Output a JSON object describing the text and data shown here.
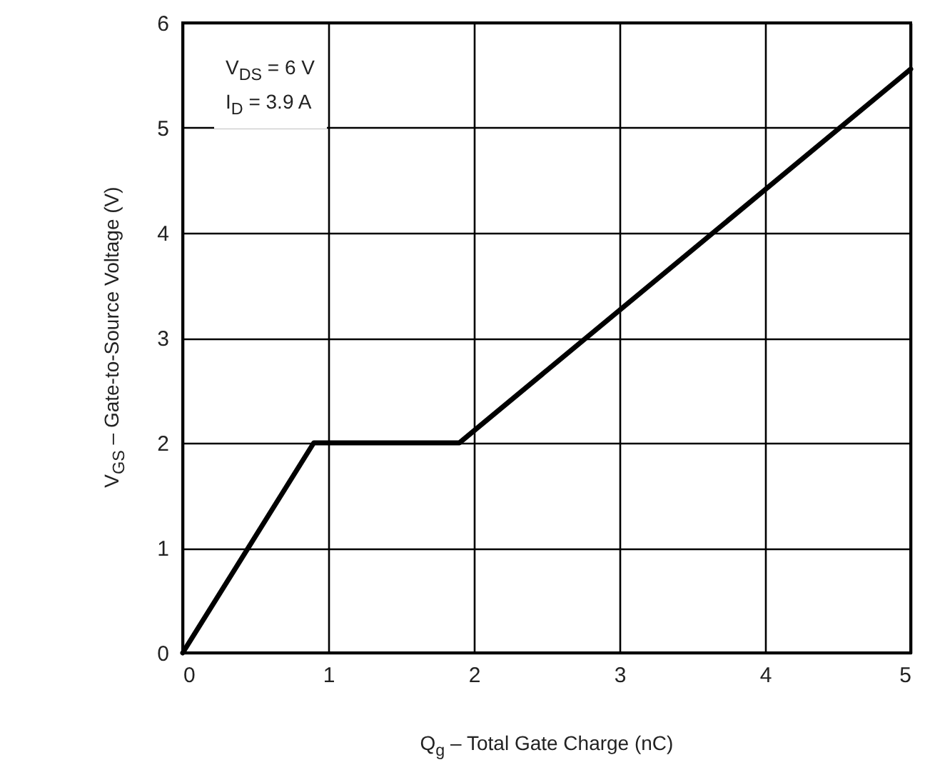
{
  "chart_data": {
    "type": "line",
    "xlabel": "Q$_{g}$ – Total Gate Charge (nC)",
    "ylabel": "V$_{GS}$ – Gate-to-Source Voltage (V)",
    "annotations": [
      "V$_{DS}$ = 6 V",
      "I$_{D}$ = 3.9 A"
    ],
    "x": [
      0,
      0.9,
      1.9,
      5
    ],
    "series": [
      {
        "color": "#000000",
        "values": [
          0,
          2,
          2,
          5.56
        ]
      }
    ],
    "xlim": [
      0,
      5
    ],
    "ylim": [
      0,
      6
    ],
    "xticks": [
      0,
      1,
      2,
      3,
      4,
      5
    ],
    "yticks": [
      0,
      1,
      2,
      3,
      4,
      5,
      6
    ],
    "grid": true,
    "marker": "none",
    "line_style": "solid"
  }
}
